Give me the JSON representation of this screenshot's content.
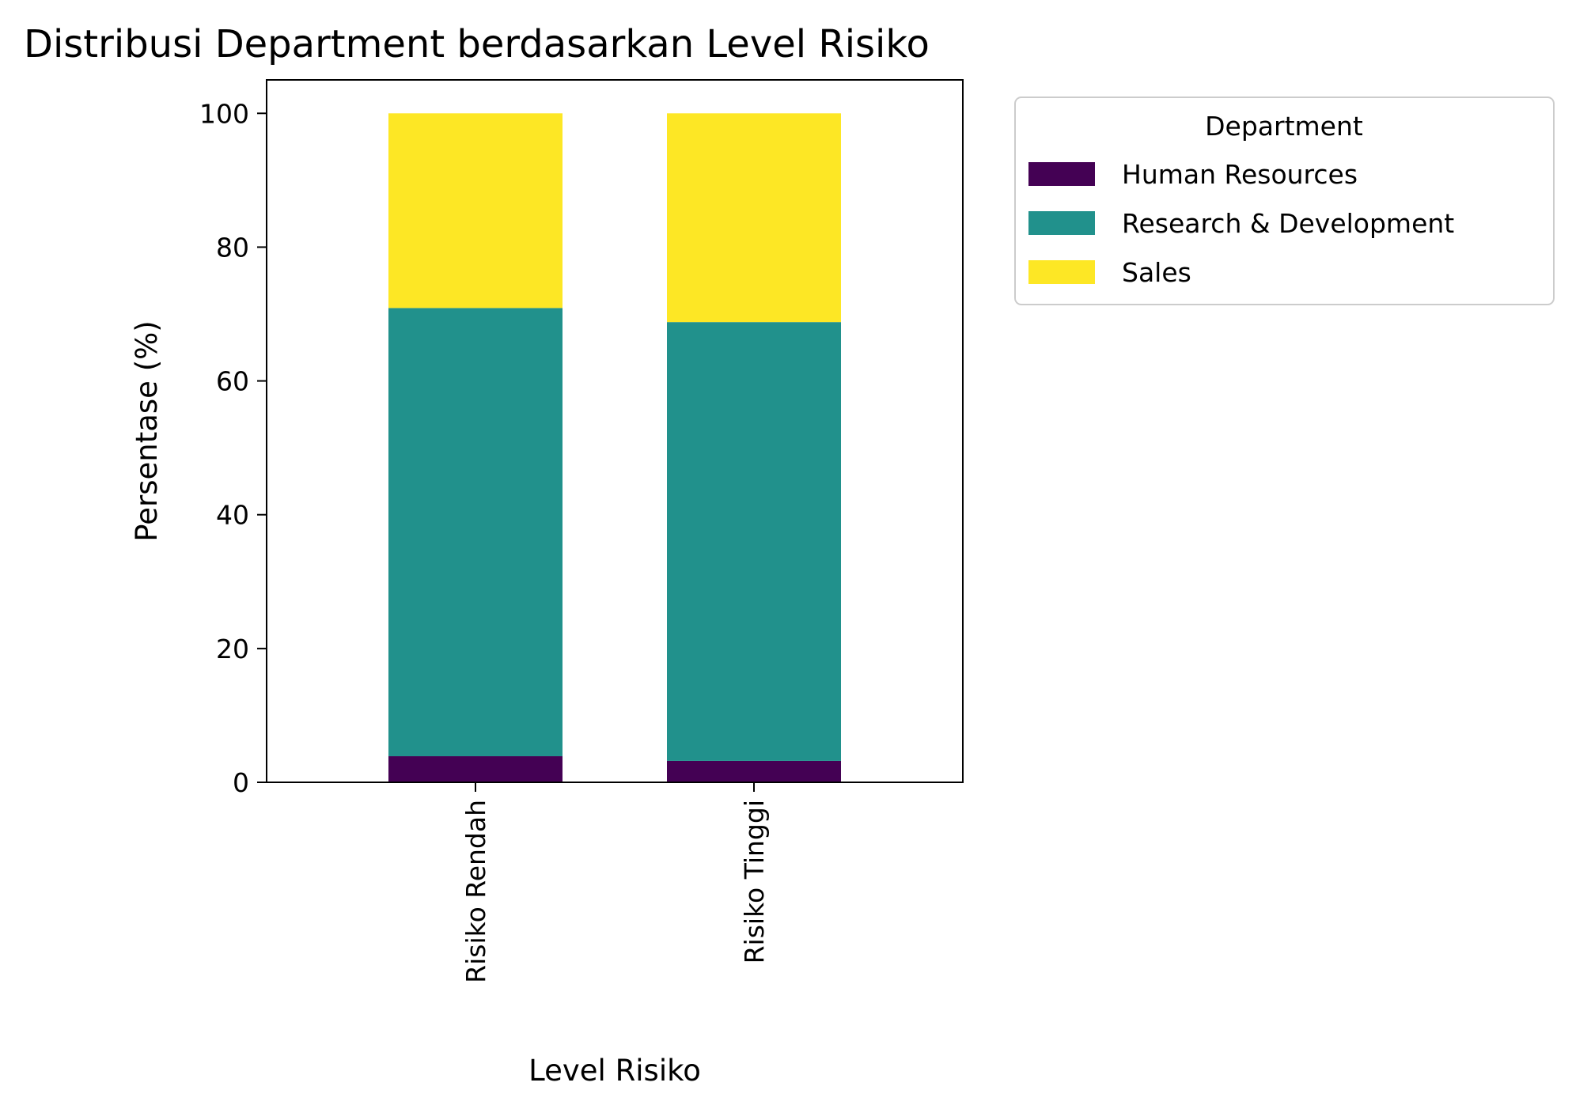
{
  "chart_data": {
    "type": "bar",
    "stacked": true,
    "title": "Distribusi Department berdasarkan Level Risiko",
    "xlabel": "Level Risiko",
    "ylabel": "Persentase (%)",
    "categories": [
      "Risiko Rendah",
      "Risiko Tinggi"
    ],
    "ylim": [
      0,
      105
    ],
    "yticks": [
      0,
      20,
      40,
      60,
      80,
      100
    ],
    "grid": false,
    "legend": {
      "title": "Department",
      "position": "outside-top-right"
    },
    "series": [
      {
        "name": "Human Resources",
        "values": [
          3.9,
          3.2
        ],
        "color": "#440154"
      },
      {
        "name": "Research & Development",
        "values": [
          67.0,
          65.6
        ],
        "color": "#21918c"
      },
      {
        "name": "Sales",
        "values": [
          29.1,
          31.2
        ],
        "color": "#fde725"
      }
    ]
  }
}
